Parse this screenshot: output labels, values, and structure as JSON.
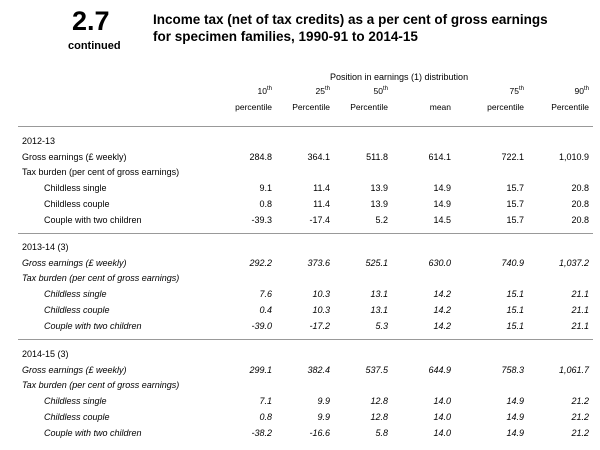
{
  "header": {
    "table_number": "2.7",
    "continued": "continued",
    "title_line1": "Income tax (net of tax credits) as a per cent of gross earnings",
    "title_line2": "for specimen families, 1990-91 to 2014-15"
  },
  "columns": {
    "group_label": "Position in earnings (1) distribution",
    "headers": [
      {
        "top": "10",
        "sup": "th",
        "bottom": "percentile"
      },
      {
        "top": "25",
        "sup": "th",
        "bottom": "Percentile"
      },
      {
        "top": "50",
        "sup": "th",
        "bottom": "Percentile"
      },
      {
        "top": "",
        "sup": "",
        "bottom": "mean"
      },
      {
        "top": "75",
        "sup": "th",
        "bottom": "percentile"
      },
      {
        "top": "90",
        "sup": "th",
        "bottom": "Percentile"
      }
    ]
  },
  "sections": [
    {
      "year": "2012-13",
      "gross_label": "Gross earnings (£ weekly)",
      "gross": [
        "284.8",
        "364.1",
        "511.8",
        "614.1",
        "722.1",
        "1,010.9"
      ],
      "burden_label": "Tax burden (per cent of gross earnings)",
      "rows": [
        {
          "label": "Childless single",
          "values": [
            "9.1",
            "11.4",
            "13.9",
            "14.9",
            "15.7",
            "20.8"
          ]
        },
        {
          "label": "Childless couple",
          "values": [
            "0.8",
            "11.4",
            "13.9",
            "14.9",
            "15.7",
            "20.8"
          ]
        },
        {
          "label": "Couple with two children",
          "values": [
            "-39.3",
            "-17.4",
            "5.2",
            "14.5",
            "15.7",
            "20.8"
          ]
        }
      ]
    },
    {
      "year": "2013-14 (3)",
      "gross_label": "Gross earnings (£ weekly)",
      "gross": [
        "292.2",
        "373.6",
        "525.1",
        "630.0",
        "740.9",
        "1,037.2"
      ],
      "burden_label": "Tax burden (per cent of gross earnings)",
      "rows": [
        {
          "label": "Childless single",
          "values": [
            "7.6",
            "10.3",
            "13.1",
            "14.2",
            "15.1",
            "21.1"
          ]
        },
        {
          "label": "Childless couple",
          "values": [
            "0.4",
            "10.3",
            "13.1",
            "14.2",
            "15.1",
            "21.1"
          ]
        },
        {
          "label": "Couple with two children",
          "values": [
            "-39.0",
            "-17.2",
            "5.3",
            "14.2",
            "15.1",
            "21.1"
          ]
        }
      ]
    },
    {
      "year": "2014-15 (3)",
      "gross_label": "Gross earnings (£ weekly)",
      "gross": [
        "299.1",
        "382.4",
        "537.5",
        "644.9",
        "758.3",
        "1,061.7"
      ],
      "burden_label": "Tax burden (per cent of gross earnings)",
      "rows": [
        {
          "label": "Childless single",
          "values": [
            "7.1",
            "9.9",
            "12.8",
            "14.0",
            "14.9",
            "21.2"
          ]
        },
        {
          "label": "Childless couple",
          "values": [
            "0.8",
            "9.9",
            "12.8",
            "14.0",
            "14.9",
            "21.2"
          ]
        },
        {
          "label": "Couple with two children",
          "values": [
            "-38.2",
            "-16.6",
            "5.8",
            "14.0",
            "14.9",
            "21.2"
          ]
        }
      ]
    }
  ]
}
